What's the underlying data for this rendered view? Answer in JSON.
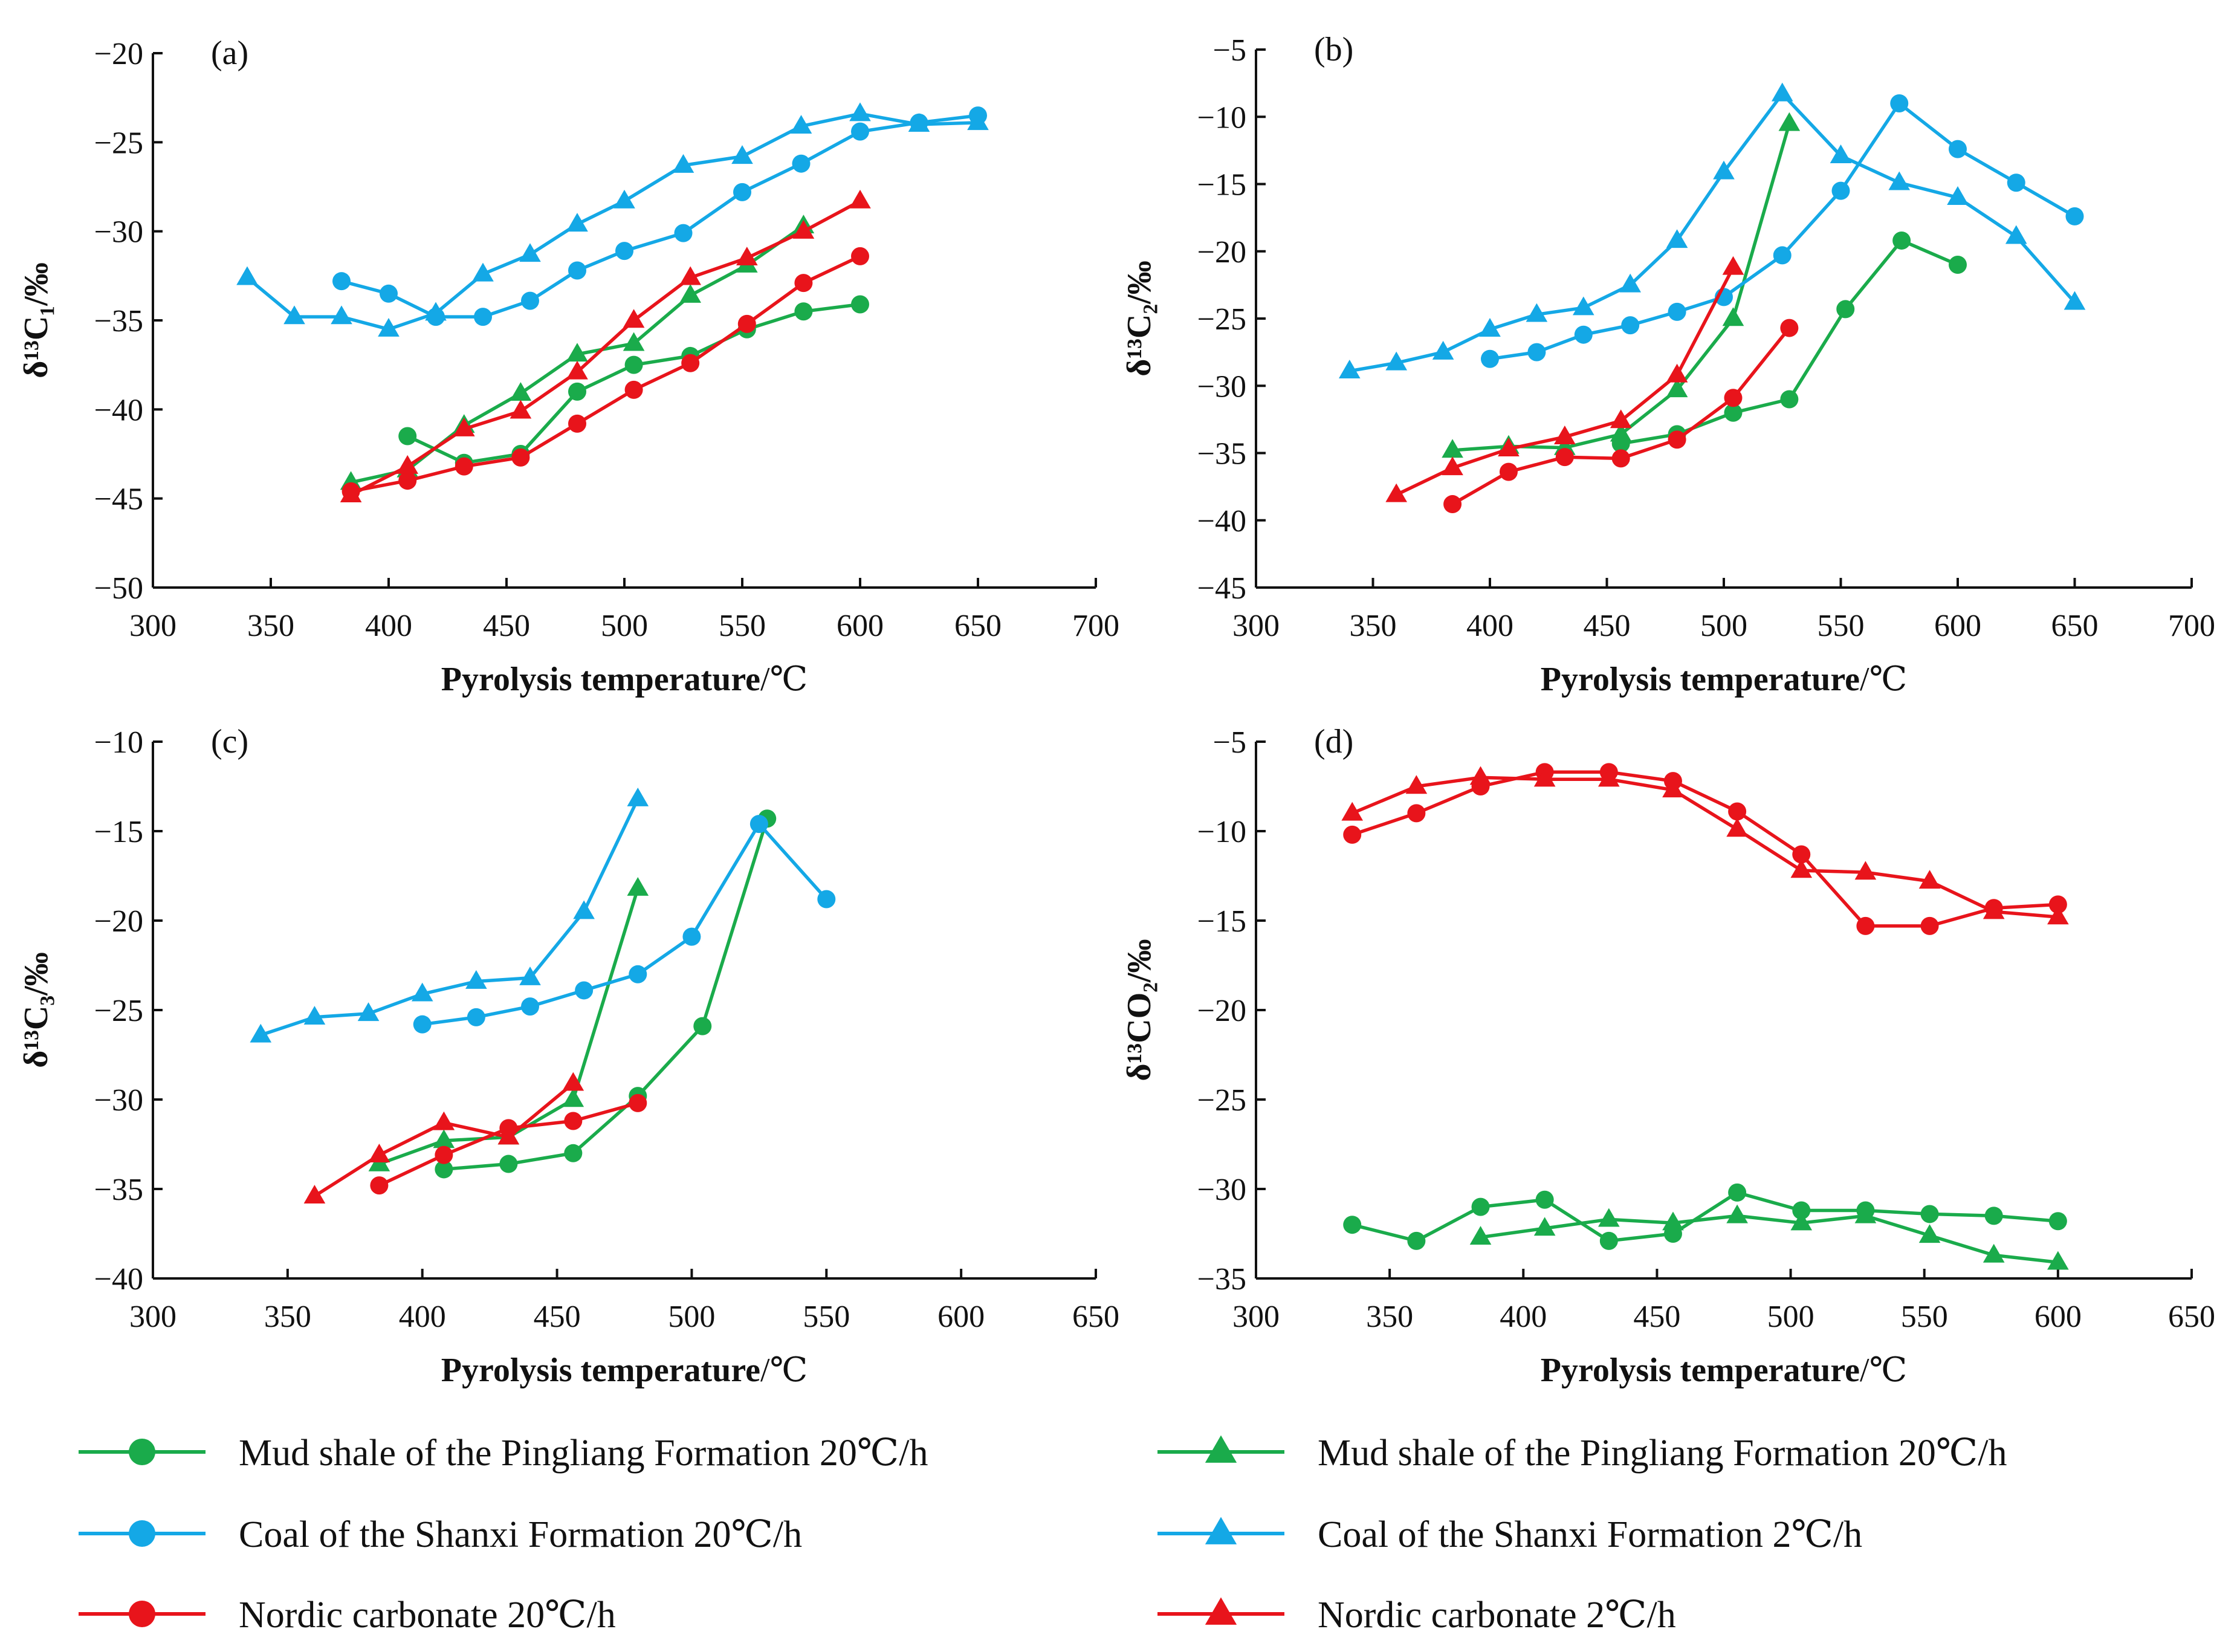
{
  "colors": {
    "green": "#1aab4b",
    "blue": "#14a8e6",
    "red": "#e8141b",
    "axis": "#111111"
  },
  "chart_data": [
    {
      "type": "line",
      "panel_label": "(a)",
      "xlabel": "Pyrolysis temperature/℃",
      "ylabel": "δ¹³C₁/‰",
      "xlim": [
        300,
        700
      ],
      "ylim": [
        -50,
        -20
      ],
      "xticks": [
        300,
        350,
        400,
        450,
        500,
        550,
        600,
        650,
        700
      ],
      "yticks": [
        -20,
        -25,
        -30,
        -35,
        -40,
        -45,
        -50
      ],
      "series": [
        {
          "name": "Mud shale of the Pingliang Formation 20℃/h",
          "color": "green",
          "marker": "circle",
          "x": [
            408,
            432,
            456,
            480,
            504,
            528,
            552,
            576,
            600
          ],
          "y": [
            -41.5,
            -43.0,
            -42.5,
            -39.0,
            -37.5,
            -37.0,
            -35.5,
            -34.5,
            -34.1
          ]
        },
        {
          "name": "Mud shale of the Pingliang Formation 20℃/h",
          "color": "green",
          "marker": "triangle",
          "x": [
            384,
            408,
            432,
            456,
            480,
            504,
            528,
            552,
            576
          ],
          "y": [
            -44.1,
            -43.4,
            -40.9,
            -39.1,
            -36.9,
            -36.3,
            -33.6,
            -31.9,
            -29.7
          ]
        },
        {
          "name": "Coal of the Shanxi Formation 20℃/h",
          "color": "blue",
          "marker": "circle",
          "x": [
            380,
            400,
            420,
            440,
            460,
            480,
            500,
            525,
            550,
            575,
            600,
            625,
            650
          ],
          "y": [
            -32.8,
            -33.5,
            -34.8,
            -34.8,
            -33.9,
            -32.2,
            -31.1,
            -30.1,
            -27.8,
            -26.2,
            -24.4,
            -23.9,
            -23.5
          ]
        },
        {
          "name": "Coal of the Shanxi Formation 2℃/h",
          "color": "blue",
          "marker": "triangle",
          "x": [
            340,
            360,
            380,
            400,
            420,
            440,
            460,
            480,
            500,
            525,
            550,
            575,
            600,
            625,
            650
          ],
          "y": [
            -32.6,
            -34.8,
            -34.8,
            -35.5,
            -34.6,
            -32.4,
            -31.3,
            -29.6,
            -28.3,
            -26.3,
            -25.8,
            -24.1,
            -23.4,
            -24.0,
            -23.9
          ]
        },
        {
          "name": "Nordic carbonate 20℃/h",
          "color": "red",
          "marker": "circle",
          "x": [
            384,
            408,
            432,
            456,
            480,
            504,
            528,
            552,
            576,
            600
          ],
          "y": [
            -44.6,
            -44.0,
            -43.2,
            -42.7,
            -40.8,
            -38.9,
            -37.4,
            -35.2,
            -32.9,
            -31.4
          ]
        },
        {
          "name": "Nordic carbonate 2℃/h",
          "color": "red",
          "marker": "triangle",
          "x": [
            384,
            408,
            432,
            456,
            480,
            504,
            528,
            552,
            576,
            600
          ],
          "y": [
            -44.8,
            -43.2,
            -41.1,
            -40.1,
            -37.9,
            -35.0,
            -32.6,
            -31.5,
            -30.0,
            -28.3
          ]
        }
      ]
    },
    {
      "type": "line",
      "panel_label": "(b)",
      "xlabel": "Pyrolysis temperature/℃",
      "ylabel": "δ¹³C₂/‰",
      "xlim": [
        300,
        700
      ],
      "ylim": [
        -45,
        -5
      ],
      "xticks": [
        300,
        350,
        400,
        450,
        500,
        550,
        600,
        650,
        700
      ],
      "yticks": [
        -5,
        -10,
        -15,
        -20,
        -25,
        -30,
        -35,
        -40,
        -45
      ],
      "series": [
        {
          "name": "Mud shale of the Pingliang Formation 20℃/h",
          "color": "green",
          "marker": "circle",
          "x": [
            456,
            480,
            504,
            528,
            552,
            576,
            600
          ],
          "y": [
            -34.3,
            -33.6,
            -32.0,
            -31.0,
            -24.3,
            -19.2,
            -21.0
          ]
        },
        {
          "name": "Mud shale of the Pingliang Formation 20℃/h",
          "color": "green",
          "marker": "triangle",
          "x": [
            384,
            408,
            432,
            456,
            480,
            504,
            528
          ],
          "y": [
            -34.8,
            -34.5,
            -34.6,
            -33.6,
            -30.3,
            -25.0,
            -10.5
          ]
        },
        {
          "name": "Coal of the Shanxi Formation 20℃/h",
          "color": "blue",
          "marker": "circle",
          "x": [
            400,
            420,
            440,
            460,
            480,
            500,
            525,
            550,
            575,
            600,
            625,
            650
          ],
          "y": [
            -28.0,
            -27.5,
            -26.2,
            -25.5,
            -24.5,
            -23.4,
            -20.3,
            -15.5,
            -9.0,
            -12.4,
            -14.9,
            -17.4
          ]
        },
        {
          "name": "Coal of the Shanxi Formation 2℃/h",
          "color": "blue",
          "marker": "triangle",
          "x": [
            340,
            360,
            380,
            400,
            420,
            440,
            460,
            480,
            500,
            525,
            550,
            575,
            600,
            625,
            650
          ],
          "y": [
            -28.9,
            -28.3,
            -27.5,
            -25.8,
            -24.7,
            -24.2,
            -22.5,
            -19.2,
            -14.1,
            -8.3,
            -12.9,
            -14.9,
            -16.0,
            -18.9,
            -23.8
          ]
        },
        {
          "name": "Nordic carbonate 20℃/h",
          "color": "red",
          "marker": "circle",
          "x": [
            384,
            408,
            432,
            456,
            480,
            504,
            528
          ],
          "y": [
            -38.8,
            -36.4,
            -35.3,
            -35.4,
            -34.0,
            -30.9,
            -25.7
          ]
        },
        {
          "name": "Nordic carbonate 2℃/h",
          "color": "red",
          "marker": "triangle",
          "x": [
            360,
            384,
            408,
            432,
            456,
            480,
            504
          ],
          "y": [
            -38.1,
            -36.1,
            -34.7,
            -33.8,
            -32.6,
            -29.2,
            -21.2
          ]
        }
      ]
    },
    {
      "type": "line",
      "panel_label": "(c)",
      "xlabel": "Pyrolysis temperature/℃",
      "ylabel": "δ¹³C₃/‰",
      "xlim": [
        300,
        650
      ],
      "ylim": [
        -40,
        -10
      ],
      "xticks": [
        300,
        350,
        400,
        450,
        500,
        550,
        600,
        650
      ],
      "yticks": [
        -10,
        -15,
        -20,
        -25,
        -30,
        -35,
        -40
      ],
      "series": [
        {
          "name": "Mud shale of the Pingliang Formation 20℃/h",
          "color": "green",
          "marker": "circle",
          "x": [
            408,
            432,
            456,
            480,
            504,
            528
          ],
          "y": [
            -33.9,
            -33.6,
            -33.0,
            -29.8,
            -25.9,
            -14.3
          ]
        },
        {
          "name": "Mud shale of the Pingliang Formation 20℃/h",
          "color": "green",
          "marker": "triangle",
          "x": [
            384,
            408,
            432,
            456,
            480
          ],
          "y": [
            -33.6,
            -32.3,
            -32.1,
            -30.0,
            -18.2
          ]
        },
        {
          "name": "Coal of the Shanxi Formation 20℃/h",
          "color": "blue",
          "marker": "circle",
          "x": [
            400,
            420,
            440,
            460,
            480,
            500,
            525,
            550
          ],
          "y": [
            -25.8,
            -25.4,
            -24.8,
            -23.9,
            -23.0,
            -20.9,
            -14.6,
            -18.8
          ]
        },
        {
          "name": "Coal of the Shanxi Formation 2℃/h",
          "color": "blue",
          "marker": "triangle",
          "x": [
            340,
            360,
            380,
            400,
            420,
            440,
            460,
            480
          ],
          "y": [
            -26.4,
            -25.4,
            -25.2,
            -24.1,
            -23.4,
            -23.2,
            -19.5,
            -13.2
          ]
        },
        {
          "name": "Nordic carbonate 20℃/h",
          "color": "red",
          "marker": "circle",
          "x": [
            384,
            408,
            432,
            456,
            480
          ],
          "y": [
            -34.8,
            -33.1,
            -31.6,
            -31.2,
            -30.2
          ]
        },
        {
          "name": "Nordic carbonate 2℃/h",
          "color": "red",
          "marker": "triangle",
          "x": [
            360,
            384,
            408,
            432,
            456
          ],
          "y": [
            -35.4,
            -33.1,
            -31.3,
            -32.1,
            -29.1
          ]
        }
      ]
    },
    {
      "type": "line",
      "panel_label": "(d)",
      "xlabel": "Pyrolysis temperature/℃",
      "ylabel": "δ¹³CO₂/‰",
      "xlim": [
        300,
        650
      ],
      "ylim": [
        -35,
        -5
      ],
      "xticks": [
        300,
        350,
        400,
        450,
        500,
        550,
        600,
        650
      ],
      "yticks": [
        -5,
        -10,
        -15,
        -20,
        -25,
        -30,
        -35
      ],
      "series": [
        {
          "name": "Mud shale of the Pingliang Formation 20℃/h",
          "color": "green",
          "marker": "circle",
          "x": [
            336,
            360,
            384,
            408,
            432,
            456,
            480,
            504,
            528,
            552,
            576,
            600
          ],
          "y": [
            -32.0,
            -32.9,
            -31.0,
            -30.6,
            -32.9,
            -32.5,
            -30.2,
            -31.2,
            -31.2,
            -31.4,
            -31.5,
            -31.8
          ]
        },
        {
          "name": "Mud shale of the Pingliang Formation 20℃/h",
          "color": "green",
          "marker": "triangle",
          "x": [
            384,
            408,
            432,
            456,
            480,
            504,
            528,
            552,
            576,
            600
          ],
          "y": [
            -32.7,
            -32.2,
            -31.7,
            -31.9,
            -31.5,
            -31.9,
            -31.5,
            -32.6,
            -33.7,
            -34.1
          ]
        },
        {
          "name": "Nordic carbonate 20℃/h",
          "color": "red",
          "marker": "circle",
          "x": [
            336,
            360,
            384,
            408,
            432,
            456,
            480,
            504,
            528,
            552,
            576,
            600
          ],
          "y": [
            -10.2,
            -9.0,
            -7.5,
            -6.7,
            -6.7,
            -7.2,
            -8.9,
            -11.3,
            -15.3,
            -15.3,
            -14.3,
            -14.1
          ]
        },
        {
          "name": "Nordic carbonate 2℃/h",
          "color": "red",
          "marker": "triangle",
          "x": [
            336,
            360,
            384,
            408,
            432,
            456,
            480,
            504,
            528,
            552,
            576,
            600
          ],
          "y": [
            -9.0,
            -7.5,
            -7.0,
            -7.1,
            -7.1,
            -7.7,
            -9.9,
            -12.2,
            -12.3,
            -12.8,
            -14.5,
            -14.8
          ]
        }
      ]
    }
  ],
  "legend": {
    "items": [
      {
        "label": "Mud shale of the Pingliang Formation 20℃/h",
        "color": "green",
        "marker": "circle"
      },
      {
        "label": "Mud shale of the Pingliang Formation 20℃/h",
        "color": "green",
        "marker": "triangle"
      },
      {
        "label": "Coal of the Shanxi Formation 20℃/h",
        "color": "blue",
        "marker": "circle"
      },
      {
        "label": "Coal of the Shanxi Formation 2℃/h",
        "color": "blue",
        "marker": "triangle"
      },
      {
        "label": "Nordic carbonate 20℃/h",
        "color": "red",
        "marker": "circle"
      },
      {
        "label": "Nordic carbonate 2℃/h",
        "color": "red",
        "marker": "triangle"
      }
    ]
  }
}
